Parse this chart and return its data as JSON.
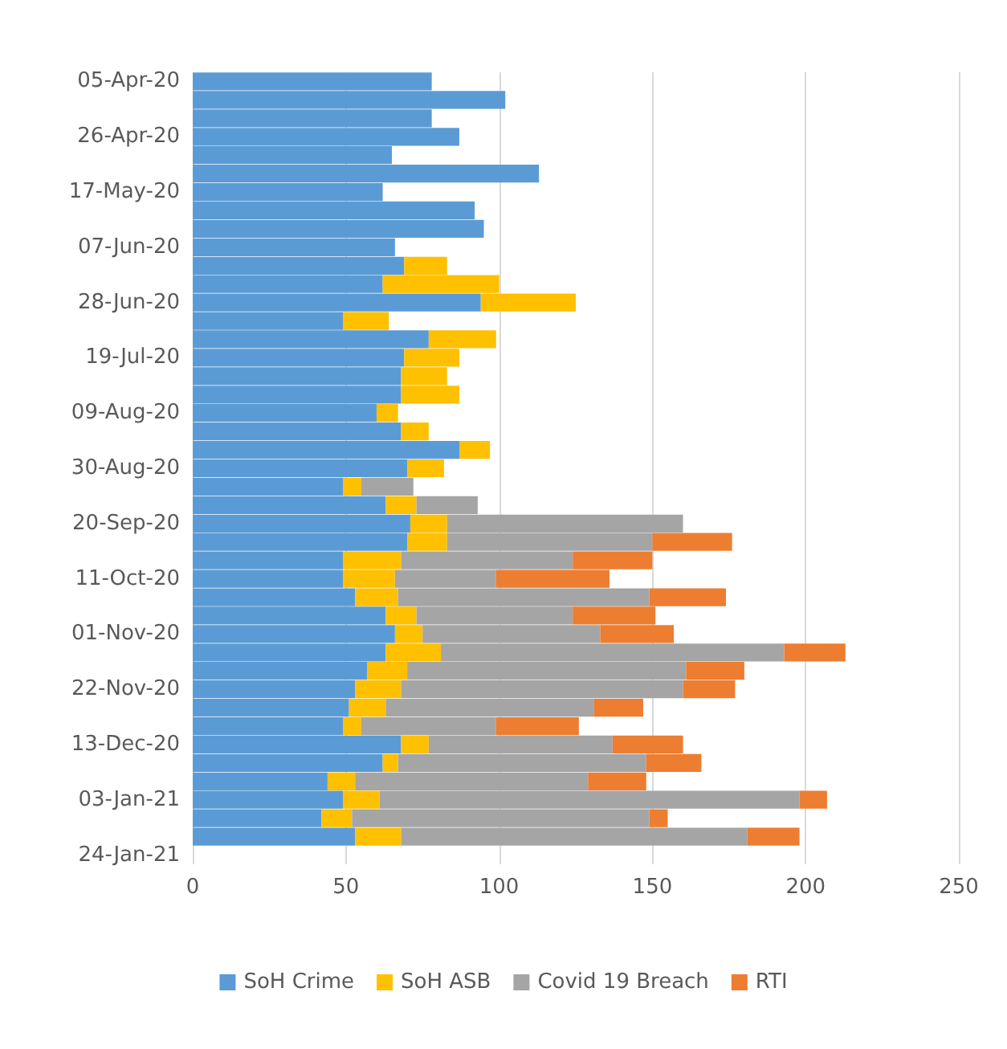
{
  "chart_data": {
    "type": "bar",
    "orientation": "horizontal",
    "stacked": true,
    "grid": "x",
    "legend": "bottom",
    "categories": [
      "05-Apr-20",
      null,
      null,
      "26-Apr-20",
      null,
      null,
      "17-May-20",
      null,
      null,
      "07-Jun-20",
      null,
      null,
      "28-Jun-20",
      null,
      null,
      "19-Jul-20",
      null,
      null,
      "09-Aug-20",
      null,
      null,
      "30-Aug-20",
      null,
      null,
      "20-Sep-20",
      null,
      null,
      "11-Oct-20",
      null,
      null,
      "01-Nov-20",
      null,
      null,
      "22-Nov-20",
      null,
      null,
      "13-Dec-20",
      null,
      null,
      "03-Jan-21",
      null,
      null,
      "24-Jan-21"
    ],
    "xlim": [
      0,
      250
    ],
    "xticks": [
      0,
      50,
      100,
      150,
      200,
      250
    ],
    "series": [
      {
        "name": "SoH Crime",
        "color": "#5b9bd5",
        "values": [
          78,
          102,
          78,
          87,
          65,
          113,
          62,
          92,
          95,
          66,
          69,
          62,
          94,
          49,
          77,
          69,
          68,
          68,
          60,
          68,
          87,
          70,
          49,
          63,
          71,
          70,
          49,
          49,
          53,
          63,
          66,
          63,
          57,
          53,
          51,
          49,
          68,
          62,
          44,
          49,
          42,
          53,
          null
        ]
      },
      {
        "name": "SoH ASB",
        "color": "#ffc000",
        "values": [
          0,
          0,
          0,
          0,
          0,
          0,
          0,
          0,
          0,
          0,
          14,
          38,
          31,
          15,
          22,
          18,
          15,
          19,
          7,
          9,
          10,
          12,
          6,
          10,
          12,
          13,
          19,
          17,
          14,
          10,
          9,
          18,
          13,
          15,
          12,
          6,
          9,
          5,
          9,
          12,
          10,
          15,
          null
        ]
      },
      {
        "name": "Covid 19 Breach",
        "color": "#a5a5a5",
        "values": [
          0,
          0,
          0,
          0,
          0,
          0,
          0,
          0,
          0,
          0,
          0,
          0,
          0,
          0,
          0,
          0,
          0,
          0,
          0,
          0,
          0,
          0,
          17,
          20,
          77,
          67,
          56,
          33,
          82,
          51,
          58,
          112,
          91,
          92,
          68,
          44,
          60,
          81,
          76,
          137,
          97,
          113,
          null
        ]
      },
      {
        "name": "RTI",
        "color": "#ed7d31",
        "values": [
          0,
          0,
          0,
          0,
          0,
          0,
          0,
          0,
          0,
          0,
          0,
          0,
          0,
          0,
          0,
          0,
          0,
          0,
          0,
          0,
          0,
          0,
          0,
          0,
          0,
          26,
          26,
          37,
          25,
          27,
          24,
          20,
          19,
          17,
          16,
          27,
          23,
          18,
          19,
          9,
          6,
          17,
          null
        ]
      }
    ]
  }
}
